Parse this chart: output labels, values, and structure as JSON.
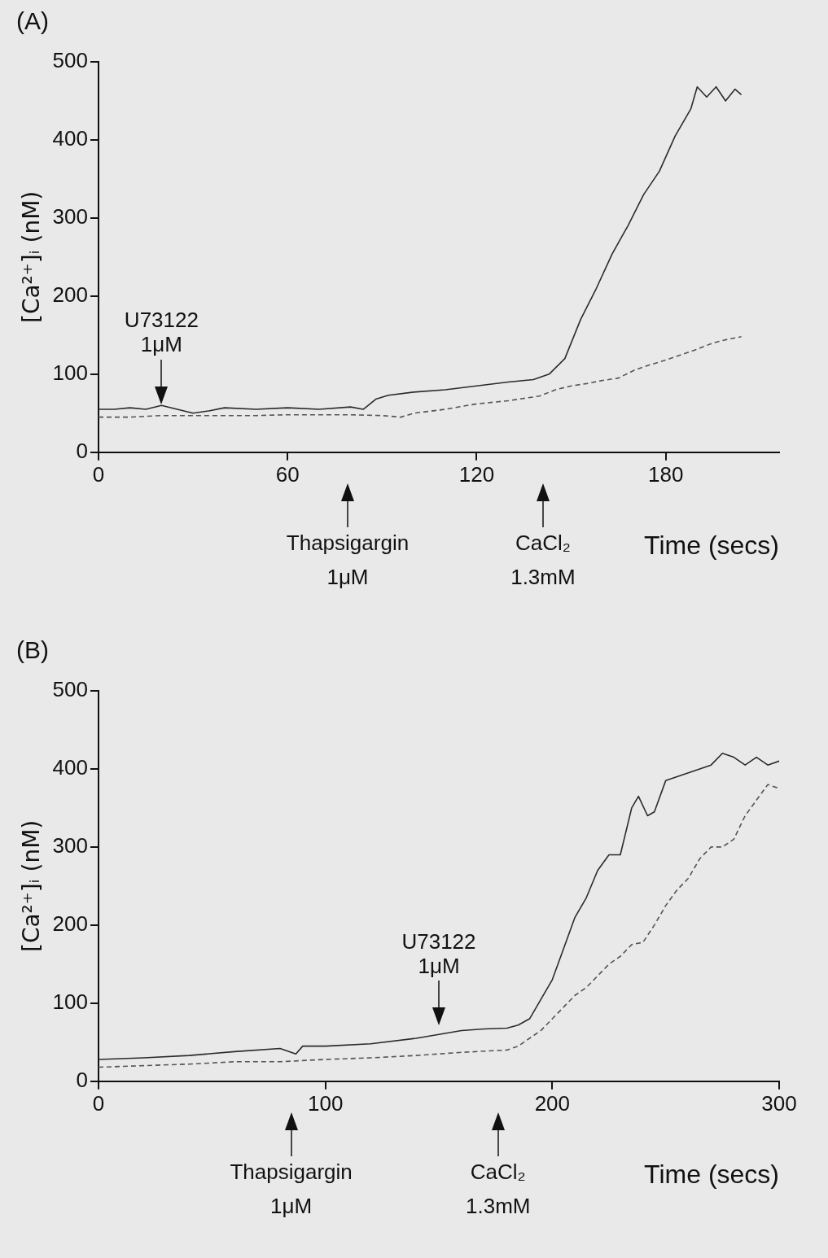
{
  "chart_data": [
    {
      "type": "line",
      "title": "(A)",
      "xlabel": "Time (secs)",
      "ylabel": "[Ca²⁺]ᵢ (nM)",
      "xlim": [
        0,
        216
      ],
      "xticks": [
        0,
        60,
        120,
        180
      ],
      "ylim": [
        0,
        500
      ],
      "yticks": [
        0,
        100,
        200,
        300,
        400,
        500
      ],
      "grid": false,
      "legend": false,
      "marker": "none",
      "series": [
        {
          "color": "#2b2b2b",
          "line_style": "solid",
          "x": [
            0,
            5,
            10,
            15,
            20,
            25,
            30,
            35,
            40,
            50,
            60,
            70,
            80,
            84,
            88,
            92,
            100,
            110,
            120,
            130,
            138,
            143,
            148,
            153,
            158,
            163,
            168,
            173,
            178,
            183,
            188,
            190,
            193,
            196,
            199,
            202,
            204
          ],
          "values": [
            55,
            55,
            57,
            55,
            60,
            55,
            50,
            53,
            57,
            55,
            57,
            55,
            58,
            55,
            68,
            73,
            77,
            80,
            85,
            90,
            93,
            100,
            120,
            170,
            210,
            254,
            290,
            330,
            360,
            405,
            440,
            468,
            455,
            468,
            450,
            465,
            458
          ]
        },
        {
          "color": "#555555",
          "line_style": "dashed",
          "x": [
            0,
            10,
            20,
            30,
            40,
            50,
            60,
            70,
            80,
            90,
            96,
            100,
            110,
            120,
            130,
            140,
            145,
            150,
            155,
            160,
            165,
            170,
            175,
            180,
            185,
            190,
            195,
            200,
            204
          ],
          "values": [
            45,
            45,
            47,
            47,
            47,
            47,
            48,
            48,
            48,
            47,
            45,
            50,
            55,
            62,
            66,
            72,
            80,
            85,
            88,
            92,
            95,
            105,
            112,
            118,
            125,
            132,
            140,
            145,
            148
          ]
        }
      ],
      "annotations": [
        {
          "text": "U73122 1μM",
          "x": 20,
          "y": 55
        },
        "Thapsigargin 1μM",
        "CaCl₂ 1.3mM"
      ]
    },
    {
      "type": "line",
      "title": "(B)",
      "xlabel": "Time (secs)",
      "ylabel": "[Ca²⁺]ᵢ (nM)",
      "xlim": [
        0,
        300
      ],
      "xticks": [
        0,
        100,
        200,
        300
      ],
      "ylim": [
        0,
        500
      ],
      "yticks": [
        0,
        100,
        200,
        300,
        400,
        500
      ],
      "grid": false,
      "legend": false,
      "marker": "none",
      "series": [
        {
          "color": "#2b2b2b",
          "line_style": "solid",
          "x": [
            0,
            20,
            40,
            60,
            80,
            87,
            90,
            100,
            120,
            140,
            150,
            160,
            170,
            180,
            185,
            190,
            195,
            200,
            205,
            210,
            215,
            220,
            225,
            230,
            235,
            238,
            242,
            245,
            250,
            255,
            260,
            265,
            270,
            275,
            280,
            285,
            290,
            295,
            300
          ],
          "values": [
            28,
            30,
            33,
            38,
            42,
            35,
            45,
            45,
            48,
            55,
            60,
            65,
            67,
            68,
            72,
            80,
            105,
            130,
            170,
            210,
            235,
            270,
            290,
            290,
            350,
            365,
            340,
            345,
            385,
            390,
            395,
            400,
            405,
            420,
            415,
            405,
            415,
            405,
            410
          ]
        },
        {
          "color": "#555555",
          "line_style": "dashed",
          "x": [
            0,
            20,
            40,
            60,
            80,
            100,
            120,
            140,
            160,
            180,
            185,
            190,
            195,
            200,
            205,
            210,
            215,
            220,
            225,
            230,
            235,
            240,
            245,
            250,
            255,
            260,
            265,
            270,
            275,
            280,
            285,
            290,
            295,
            300
          ],
          "values": [
            18,
            20,
            22,
            25,
            25,
            28,
            30,
            33,
            37,
            40,
            45,
            55,
            65,
            80,
            95,
            110,
            120,
            135,
            150,
            160,
            175,
            178,
            200,
            225,
            245,
            260,
            285,
            300,
            300,
            310,
            340,
            360,
            380,
            375
          ]
        }
      ],
      "annotations": [
        "Thapsigargin 1μM",
        {
          "text": "U73122 1μM",
          "x": 150,
          "y": 65
        },
        "CaCl₂ 1.3mM"
      ]
    }
  ]
}
